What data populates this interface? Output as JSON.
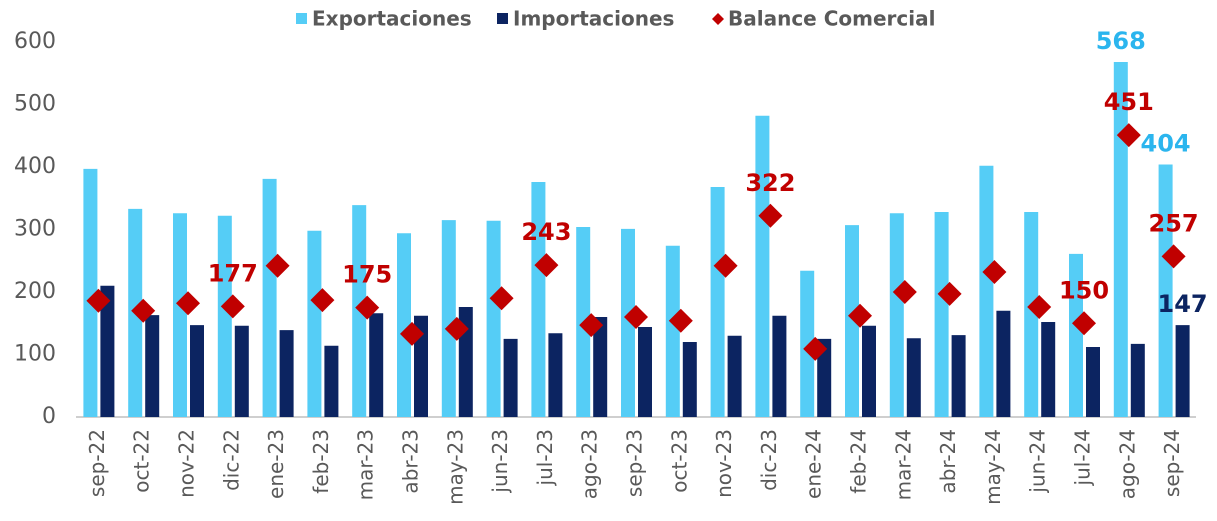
{
  "chart_data": {
    "type": "bar",
    "categories": [
      "sep-22",
      "oct-22",
      "nov-22",
      "dic-22",
      "ene-23",
      "feb-23",
      "mar-23",
      "abr-23",
      "may-23",
      "jun-23",
      "jul-23",
      "ago-23",
      "sep-23",
      "oct-23",
      "nov-23",
      "dic-23",
      "ene-24",
      "feb-24",
      "mar-24",
      "abr-24",
      "may-24",
      "jun-24",
      "jul-24",
      "ago-24",
      "sep-24"
    ],
    "series": [
      {
        "name": "Exportaciones",
        "type": "bar",
        "color": "#55cdf6",
        "values": [
          397,
          333,
          326,
          322,
          381,
          298,
          339,
          294,
          315,
          314,
          376,
          304,
          301,
          274,
          368,
          482,
          234,
          307,
          326,
          328,
          402,
          328,
          261,
          568,
          404
        ],
        "value_labels": [
          null,
          null,
          null,
          null,
          null,
          null,
          null,
          null,
          null,
          null,
          null,
          null,
          null,
          null,
          null,
          null,
          null,
          null,
          null,
          null,
          null,
          null,
          null,
          "568",
          "404"
        ],
        "label_color": "#2bb5ee"
      },
      {
        "name": "Importaciones",
        "type": "bar",
        "color": "#0c2461",
        "values": [
          210,
          163,
          147,
          146,
          139,
          114,
          166,
          162,
          176,
          125,
          134,
          160,
          144,
          120,
          130,
          162,
          125,
          146,
          126,
          131,
          170,
          152,
          112,
          117,
          147
        ],
        "value_labels": [
          null,
          null,
          null,
          null,
          null,
          null,
          null,
          null,
          null,
          null,
          null,
          null,
          null,
          null,
          null,
          null,
          null,
          null,
          null,
          null,
          null,
          null,
          null,
          null,
          "147"
        ],
        "label_color": "#0c2461"
      },
      {
        "name": "Balance Comercial",
        "type": "scatter",
        "marker": "diamond",
        "color": "#c00000",
        "values": [
          186,
          170,
          182,
          177,
          242,
          187,
          175,
          133,
          141,
          190,
          243,
          147,
          160,
          154,
          242,
          322,
          109,
          162,
          200,
          197,
          232,
          176,
          150,
          451,
          257
        ],
        "value_labels": [
          null,
          null,
          null,
          "177",
          null,
          null,
          "175",
          null,
          null,
          null,
          "243",
          null,
          null,
          null,
          null,
          "322",
          null,
          null,
          null,
          null,
          null,
          null,
          "150",
          "451",
          "257"
        ],
        "label_color": "#c00000"
      }
    ],
    "ylim": [
      0,
      600
    ],
    "yticks": [
      0,
      100,
      200,
      300,
      400,
      500,
      600
    ],
    "grid": false,
    "legend": "top"
  }
}
